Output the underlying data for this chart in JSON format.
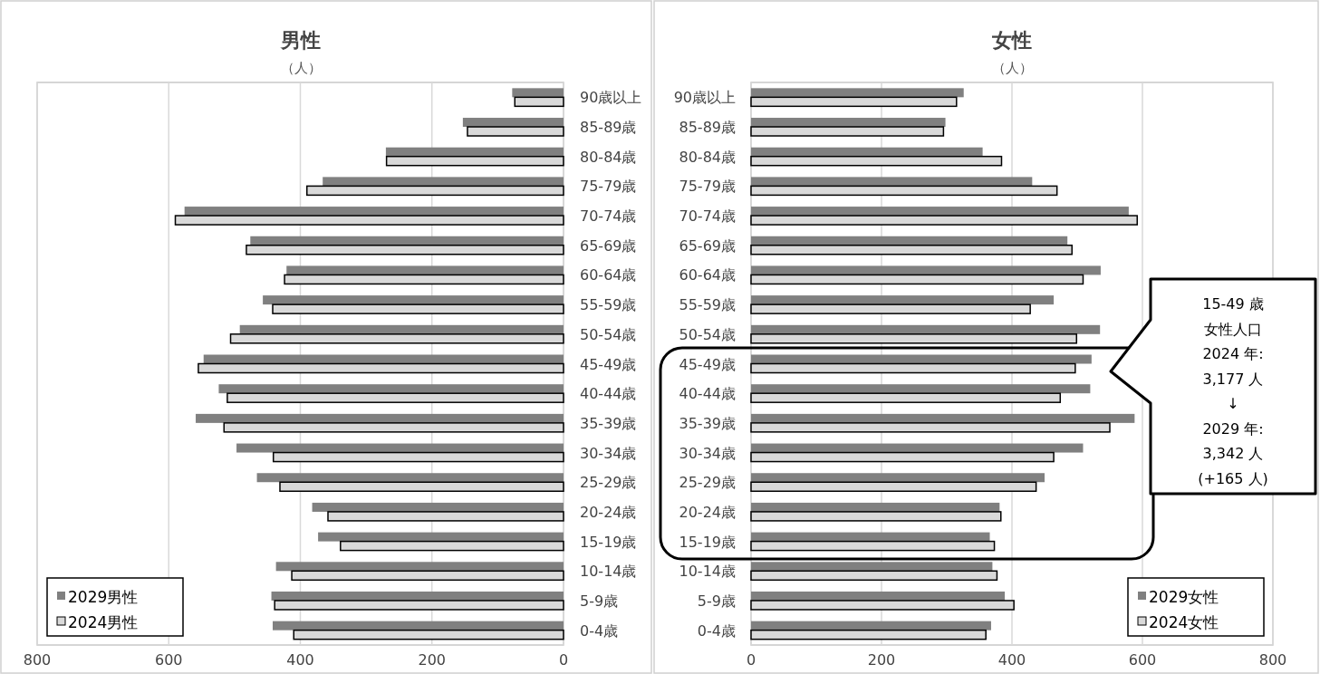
{
  "chart_data": [
    {
      "type": "bar",
      "orientation": "horizontal",
      "title": "男性",
      "subtitle": "（人）",
      "categories": [
        "90歳以上",
        "85-89歳",
        "80-84歳",
        "75-79歳",
        "70-74歳",
        "65-69歳",
        "60-64歳",
        "55-59歳",
        "50-54歳",
        "45-49歳",
        "40-44歳",
        "35-39歳",
        "30-34歳",
        "25-29歳",
        "20-24歳",
        "15-19歳",
        "10-14歳",
        "5-9歳",
        "0-4歳"
      ],
      "series": [
        {
          "name": "2029男性",
          "color": "#808080",
          "values": [
            78,
            153,
            270,
            366,
            576,
            476,
            421,
            457,
            492,
            547,
            524,
            559,
            497,
            466,
            382,
            373,
            437,
            444,
            442
          ]
        },
        {
          "name": "2024男性",
          "color": "#d9d9d9",
          "values": [
            74,
            146,
            269,
            390,
            590,
            482,
            424,
            442,
            506,
            555,
            511,
            516,
            441,
            431,
            358,
            339,
            413,
            439,
            410
          ]
        }
      ],
      "xlim": [
        800,
        0
      ],
      "xticks": [
        800,
        600,
        400,
        200,
        0
      ],
      "grid": "x",
      "legend": "bottom left"
    },
    {
      "type": "bar",
      "orientation": "horizontal",
      "title": "女性",
      "subtitle": "（人）",
      "categories": [
        "90歳以上",
        "85-89歳",
        "80-84歳",
        "75-79歳",
        "70-74歳",
        "65-69歳",
        "60-64歳",
        "55-59歳",
        "50-54歳",
        "45-49歳",
        "40-44歳",
        "35-39歳",
        "30-34歳",
        "25-29歳",
        "20-24歳",
        "15-19歳",
        "10-14歳",
        "5-9歳",
        "0-4歳"
      ],
      "series": [
        {
          "name": "2029女性",
          "color": "#808080",
          "values": [
            326,
            298,
            355,
            431,
            579,
            485,
            536,
            464,
            535,
            522,
            520,
            588,
            509,
            450,
            381,
            366,
            370,
            389,
            368
          ]
        },
        {
          "name": "2024女性",
          "color": "#d9d9d9",
          "values": [
            315,
            295,
            384,
            469,
            592,
            492,
            509,
            428,
            499,
            497,
            474,
            550,
            464,
            437,
            383,
            373,
            377,
            403,
            360
          ]
        }
      ],
      "xlim": [
        0,
        800
      ],
      "xticks": [
        0,
        200,
        400,
        600,
        800
      ],
      "grid": "x",
      "legend": "bottom right",
      "annotations": [
        "15-49 歳",
        "女性人口",
        "2024 年:",
        "3,177 人",
        "↓",
        "2029 年:",
        "3,342 人",
        "(+165 人)"
      ]
    }
  ]
}
